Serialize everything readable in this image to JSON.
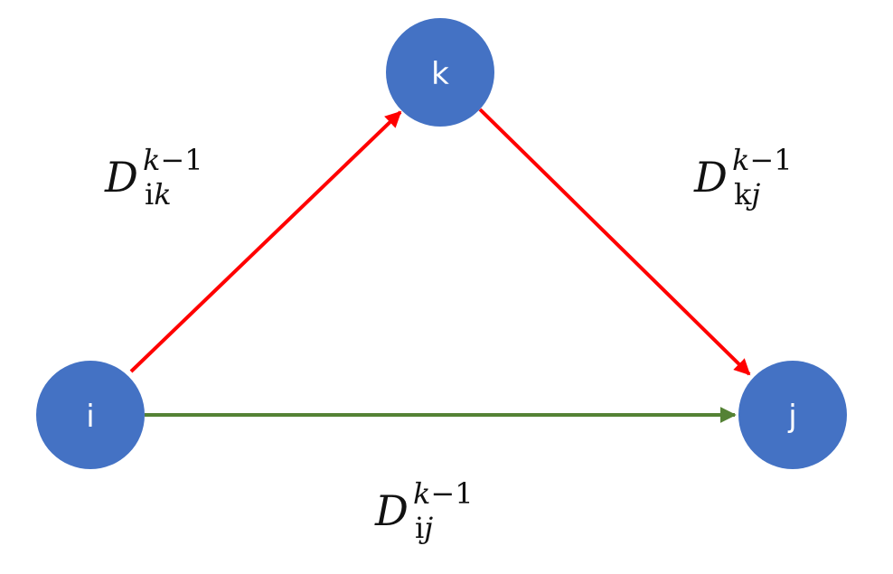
{
  "colors": {
    "node_fill": "#4472c4",
    "node_text": "#ffffff",
    "path_via_k": "#ff0000",
    "direct_path": "#548235",
    "background": "#ffffff"
  },
  "nodes": {
    "i": {
      "label": "i"
    },
    "k": {
      "label": "k"
    },
    "j": {
      "label": "j"
    }
  },
  "edges": {
    "ik": {
      "var": "D",
      "sup_var": "k",
      "sup_minus": "−",
      "sup_num": "1",
      "sub_plain": "i",
      "sub_italic": "k"
    },
    "kj": {
      "var": "D",
      "sup_var": "k",
      "sup_minus": "−",
      "sup_num": "1",
      "sub_plain": "k",
      "sub_italic": "j"
    },
    "ij": {
      "var": "D",
      "sup_var": "k",
      "sup_minus": "−",
      "sup_num": "1",
      "sub_plain": "i",
      "sub_italic": "j"
    }
  }
}
